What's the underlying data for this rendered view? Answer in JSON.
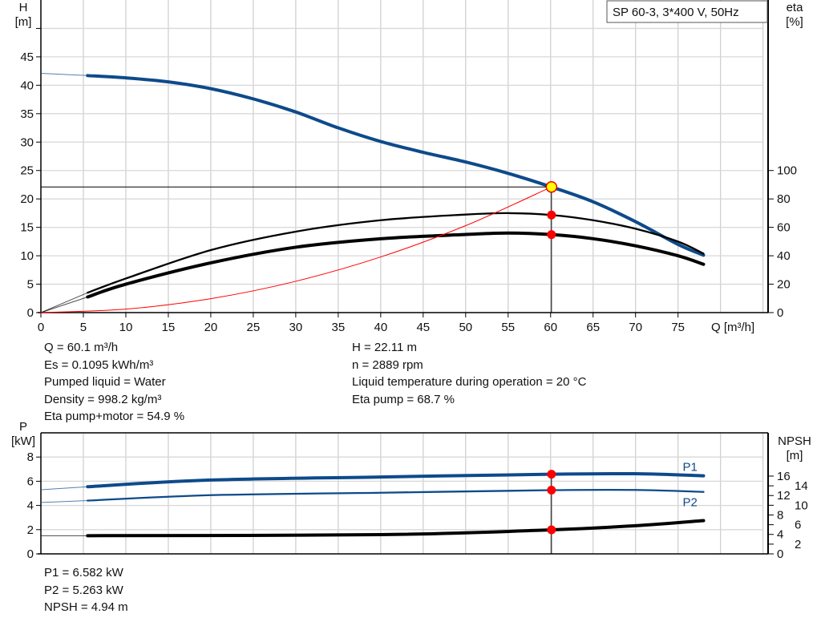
{
  "chart_data": [
    {
      "type": "line",
      "title": "SP 60-3, 3*400 V, 50Hz",
      "xlabel": "Q [m³/h]",
      "ylabel": "H\n[m]",
      "y2label": "eta\n[%]",
      "xlim": [
        0,
        85.6
      ],
      "ylim": [
        0,
        55
      ],
      "y2lim": [
        0,
        220
      ],
      "grid": true,
      "xticks": [
        0,
        5,
        10,
        15,
        20,
        25,
        30,
        35,
        40,
        45,
        50,
        55,
        60,
        65,
        70,
        75
      ],
      "yticks": [
        0,
        5,
        10,
        15,
        20,
        25,
        30,
        35,
        40,
        45
      ],
      "y2ticks": [
        0,
        20,
        40,
        60,
        80,
        100
      ],
      "series": [
        {
          "id": "H",
          "axis": "left",
          "color": "#0d4a8a",
          "x": [
            0,
            5.5,
            10,
            15,
            20,
            25,
            30,
            35,
            40,
            45,
            50,
            55,
            60.1,
            65,
            70,
            75,
            78
          ],
          "y": [
            42.1,
            41.7,
            41.3,
            40.6,
            39.4,
            37.6,
            35.3,
            32.5,
            30.1,
            28.2,
            26.5,
            24.5,
            22.1,
            19.5,
            16,
            12,
            10.1
          ]
        },
        {
          "id": "eta_pump",
          "axis": "right",
          "color": "#000000",
          "x": [
            0,
            5.5,
            10,
            20,
            30,
            40,
            50,
            55,
            60.1,
            65,
            70,
            75,
            78
          ],
          "y": [
            0,
            14,
            24,
            44,
            57,
            65,
            69,
            70,
            68.7,
            65,
            59,
            50,
            41.5
          ]
        },
        {
          "id": "eta_pump_motor",
          "axis": "right",
          "color": "#000000",
          "x": [
            0,
            5.5,
            10,
            20,
            30,
            40,
            50,
            55,
            60.1,
            65,
            70,
            75,
            78
          ],
          "y": [
            0,
            11,
            20,
            35,
            46,
            52,
            55,
            56,
            54.9,
            52,
            47,
            40,
            34
          ]
        },
        {
          "id": "system_curve",
          "axis": "left",
          "color": "#ff0000",
          "x": [
            0,
            10,
            20,
            30,
            40,
            50,
            60.1
          ],
          "y": [
            0,
            0.61,
            2.45,
            5.51,
            9.79,
            15.3,
            22.11
          ]
        }
      ],
      "duty_point": {
        "Q": 60.1,
        "H": 22.11,
        "eta_pump": 68.7,
        "eta_pump_motor": 54.9
      }
    },
    {
      "type": "line",
      "ylabel": "P\n[kW]",
      "y2label": "NPSH\n[m]",
      "xlim": [
        0,
        85.6
      ],
      "ylim": [
        0,
        10
      ],
      "y2lim": [
        0,
        24.9
      ],
      "grid": true,
      "yticks": [
        0,
        2,
        4,
        6,
        8
      ],
      "y2ticks": [
        0,
        2,
        4,
        6,
        8,
        10,
        12,
        14,
        16
      ],
      "series": [
        {
          "id": "P1",
          "name": "P1",
          "axis": "left",
          "color": "#0d4a8a",
          "x": [
            0,
            5.5,
            20,
            40,
            60.1,
            70,
            78
          ],
          "y": [
            5.3,
            5.55,
            6.1,
            6.35,
            6.582,
            6.62,
            6.45
          ]
        },
        {
          "id": "P2",
          "name": "P2",
          "axis": "left",
          "color": "#0d4a8a",
          "x": [
            0,
            5.5,
            20,
            40,
            60.1,
            70,
            78
          ],
          "y": [
            4.25,
            4.4,
            4.85,
            5.05,
            5.263,
            5.28,
            5.12
          ]
        },
        {
          "id": "NPSH",
          "axis": "right",
          "color": "#000000",
          "x": [
            0,
            5.5,
            40,
            60.1,
            70,
            78
          ],
          "y": [
            3.74,
            3.74,
            3.95,
            4.94,
            5.8,
            6.85
          ]
        }
      ],
      "duty_point": {
        "Q": 60.1
      }
    }
  ],
  "info_top_left": [
    "Q = 60.1 m³/h",
    "Es = 0.1095 kWh/m³",
    "Pumped liquid = Water",
    "Density = 998.2 kg/m³",
    "Eta pump+motor = 54.9 %"
  ],
  "info_top_right": [
    "H = 22.11 m",
    "n = 2889 rpm",
    "Liquid temperature during operation = 20 °C",
    "Eta pump = 68.7 %"
  ],
  "info_bottom": [
    "P1 = 6.582 kW",
    "P2 = 5.263 kW",
    "NPSH = 4.94 m"
  ]
}
